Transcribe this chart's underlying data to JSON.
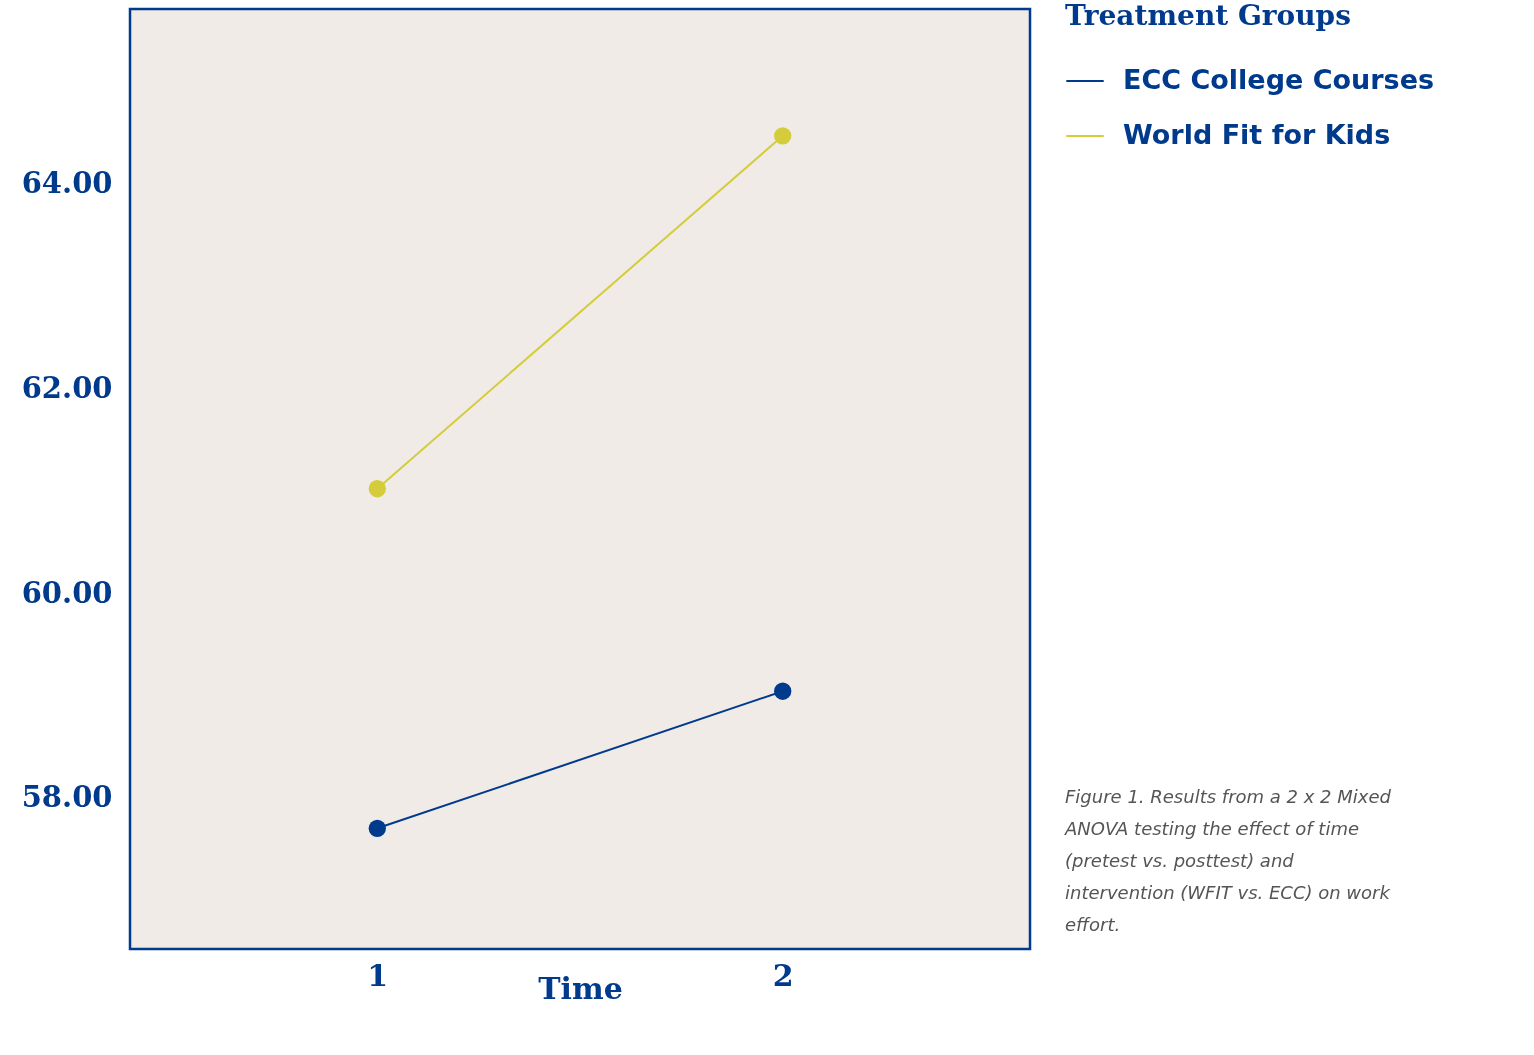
{
  "chart_data": {
    "type": "line",
    "xlabel": "Time",
    "legend_title": "Treatment Groups",
    "x": [
      1,
      2
    ],
    "series": [
      {
        "name": "ECC College Courses",
        "color": "#003a8c",
        "values": [
          57.7,
          59.04
        ]
      },
      {
        "name": "World Fit for Kids",
        "color": "#d4cc3a",
        "values": [
          61.02,
          64.47
        ]
      }
    ],
    "xlim": [
      0.39,
      2.61
    ],
    "xticks": [
      1,
      2
    ],
    "ylim": [
      56.52,
      65.71
    ],
    "yticks": [
      {
        "value": 58,
        "label": "58.00"
      },
      {
        "value": 60,
        "label": "60.00"
      },
      {
        "value": 62,
        "label": "62.00"
      },
      {
        "value": 64,
        "label": "64.00"
      }
    ],
    "grid": false,
    "legend": "top right",
    "marker": "circle",
    "line_style": "solid",
    "annotations": [
      "Figure 1. Results from a 2 x 2 Mixed ANOVA testing the effect of time (pretest vs. posttest) and intervention (WFIT vs. ECC) on work effort."
    ]
  }
}
